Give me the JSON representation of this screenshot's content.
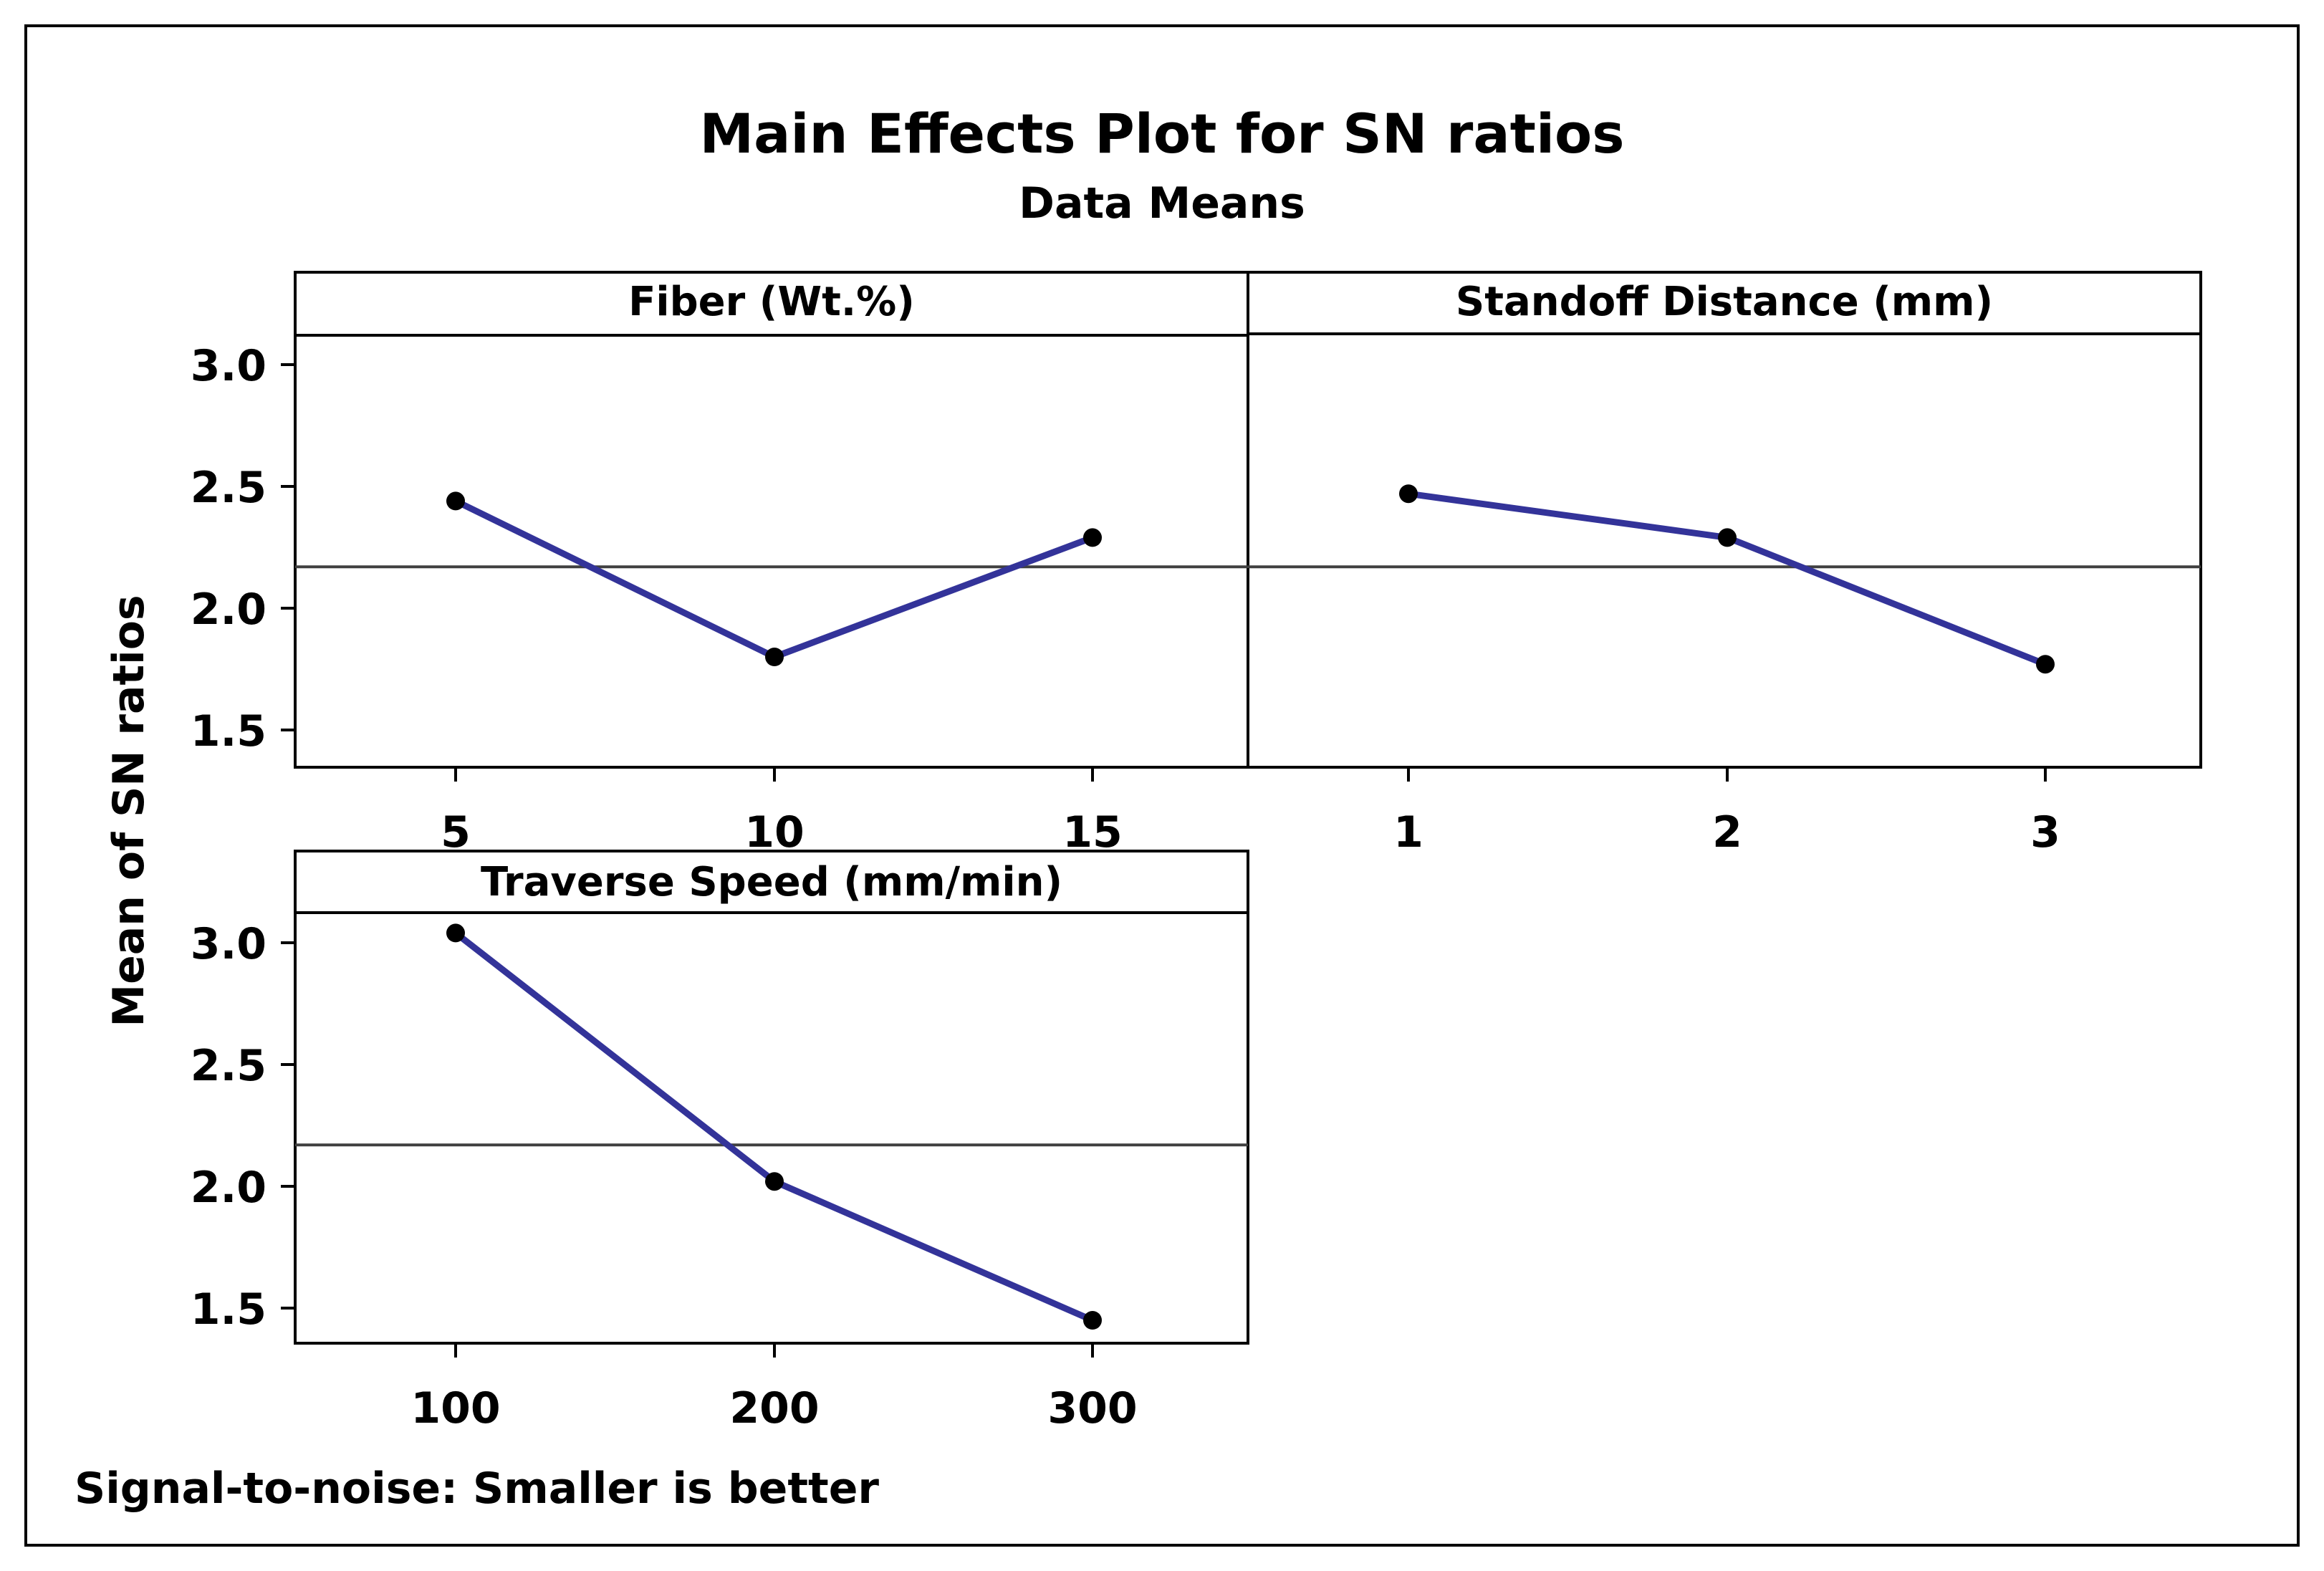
{
  "chart_data": {
    "type": "line",
    "title": "Main Effects Plot for SN ratios",
    "subtitle": "Data Means",
    "ylabel": "Mean of SN ratios",
    "footnote": "Signal-to-noise: Smaller is better",
    "ylim": [
      1.33,
      3.15
    ],
    "yticks": [
      "3.0",
      "2.5",
      "2.0",
      "1.5"
    ],
    "overall_mean": 2.17,
    "colors": {
      "line": "#333399",
      "marker": "#000000",
      "mean_line": "#404040",
      "frame": "#000000"
    },
    "panels": [
      {
        "title": "Fiber (Wt.%)",
        "categories": [
          "5",
          "10",
          "15"
        ],
        "values": [
          2.44,
          1.8,
          2.29
        ]
      },
      {
        "title": "Standoff Distance (mm)",
        "categories": [
          "1",
          "2",
          "3"
        ],
        "values": [
          2.47,
          2.29,
          1.77
        ]
      },
      {
        "title": "Traverse Speed (mm/min)",
        "categories": [
          "100",
          "200",
          "300"
        ],
        "values": [
          3.04,
          2.02,
          1.45
        ]
      }
    ]
  }
}
